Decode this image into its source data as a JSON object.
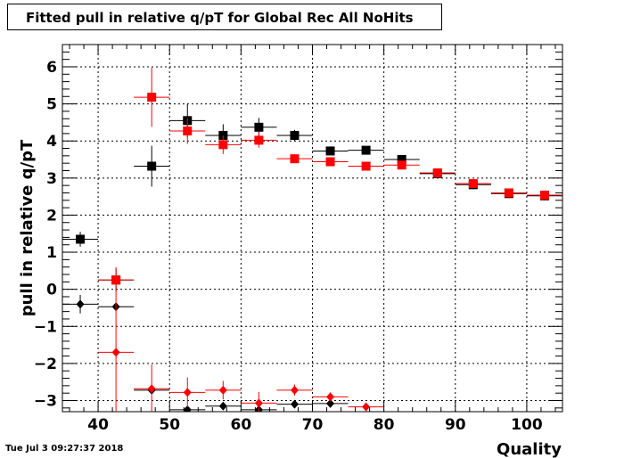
{
  "title": "Fitted pull in relative q/pT for Global Rec All NoHits",
  "timestamp": "Tue Jul  3 09:27:37 2018",
  "colors": {
    "black_series": "#000000",
    "red_series": "#ff0000",
    "grid": "#000000",
    "background": "#ffffff"
  },
  "chart_data": {
    "type": "scatter",
    "title": "Fitted pull in relative q/pT for Global Rec All NoHits",
    "xlabel": "Quality",
    "ylabel": "pull in relative q/pT",
    "xlim": [
      35,
      105
    ],
    "ylim": [
      -3.3,
      6.6
    ],
    "grid": true,
    "x_ticks": [
      40,
      50,
      60,
      70,
      80,
      90,
      100
    ],
    "x_tick_labels": [
      "40",
      "50",
      "60",
      "70",
      "80",
      "90",
      "100"
    ],
    "y_ticks": [
      -3,
      -2,
      -1,
      0,
      1,
      2,
      3,
      4,
      5,
      6
    ],
    "y_tick_labels": [
      "−3",
      "−2",
      "−1",
      "0",
      "1",
      "2",
      "3",
      "4",
      "5",
      "6"
    ],
    "series": [
      {
        "color": "#000000",
        "marker": "square",
        "points": [
          {
            "x": 37.5,
            "y": 1.35,
            "xerr": 2.5,
            "yerr": 0.2
          },
          {
            "x": 42.5,
            "y": 0.25,
            "xerr": 2.5,
            "yerr": 0.3
          },
          {
            "x": 47.5,
            "y": 3.32,
            "xerr": 2.5,
            "yerr": 0.55
          },
          {
            "x": 52.5,
            "y": 4.55,
            "xerr": 2.5,
            "yerr": 0.45
          },
          {
            "x": 57.5,
            "y": 4.15,
            "xerr": 2.5,
            "yerr": 0.3
          },
          {
            "x": 62.5,
            "y": 4.37,
            "xerr": 2.5,
            "yerr": 0.25
          },
          {
            "x": 67.5,
            "y": 4.15,
            "xerr": 2.5,
            "yerr": 0.15
          },
          {
            "x": 72.5,
            "y": 3.73,
            "xerr": 2.5,
            "yerr": 0.1
          },
          {
            "x": 77.5,
            "y": 3.75,
            "xerr": 2.5,
            "yerr": 0.08
          },
          {
            "x": 82.5,
            "y": 3.5,
            "xerr": 2.5,
            "yerr": 0.06
          },
          {
            "x": 87.5,
            "y": 3.12,
            "xerr": 2.5,
            "yerr": 0.05
          },
          {
            "x": 92.5,
            "y": 2.82,
            "xerr": 2.5,
            "yerr": 0.04
          },
          {
            "x": 97.5,
            "y": 2.58,
            "xerr": 2.5,
            "yerr": 0.04
          },
          {
            "x": 102.5,
            "y": 2.52,
            "xerr": 2.5,
            "yerr": 0.03
          }
        ]
      },
      {
        "color": "#ff0000",
        "marker": "square",
        "points": [
          {
            "x": 42.5,
            "y": 0.25,
            "xerr": 2.5,
            "yerr": 0.3
          },
          {
            "x": 47.5,
            "y": 5.18,
            "xerr": 2.5,
            "yerr": 0.8
          },
          {
            "x": 52.5,
            "y": 4.27,
            "xerr": 2.5,
            "yerr": 0.35
          },
          {
            "x": 57.5,
            "y": 3.9,
            "xerr": 2.5,
            "yerr": 0.25
          },
          {
            "x": 62.5,
            "y": 4.02,
            "xerr": 2.5,
            "yerr": 0.2
          },
          {
            "x": 67.5,
            "y": 3.52,
            "xerr": 2.5,
            "yerr": 0.12
          },
          {
            "x": 72.5,
            "y": 3.44,
            "xerr": 2.5,
            "yerr": 0.08
          },
          {
            "x": 77.5,
            "y": 3.32,
            "xerr": 2.5,
            "yerr": 0.06
          },
          {
            "x": 82.5,
            "y": 3.35,
            "xerr": 2.5,
            "yerr": 0.05
          },
          {
            "x": 87.5,
            "y": 3.14,
            "xerr": 2.5,
            "yerr": 0.04
          },
          {
            "x": 92.5,
            "y": 2.85,
            "xerr": 2.5,
            "yerr": 0.04
          },
          {
            "x": 97.5,
            "y": 2.6,
            "xerr": 2.5,
            "yerr": 0.03
          },
          {
            "x": 102.5,
            "y": 2.54,
            "xerr": 2.5,
            "yerr": 0.03
          }
        ]
      },
      {
        "color": "#000000",
        "marker": "diamond",
        "points": [
          {
            "x": 37.5,
            "y": -0.4,
            "xerr": 2.5,
            "yerr": 0.25
          },
          {
            "x": 42.5,
            "y": -0.47,
            "xerr": 2.5,
            "yerr": 0.0
          },
          {
            "x": 47.5,
            "y": -2.72,
            "xerr": 2.5,
            "yerr": 0.0
          },
          {
            "x": 52.5,
            "y": -3.25,
            "xerr": 2.5,
            "yerr": 0.0
          },
          {
            "x": 57.5,
            "y": -3.15,
            "xerr": 2.5,
            "yerr": 0.0
          },
          {
            "x": 62.5,
            "y": -3.25,
            "xerr": 2.5,
            "yerr": 0.0
          },
          {
            "x": 67.5,
            "y": -3.1,
            "xerr": 2.5,
            "yerr": 0.0
          },
          {
            "x": 72.5,
            "y": -3.08,
            "xerr": 2.5,
            "yerr": 0.0
          }
        ]
      },
      {
        "color": "#ff0000",
        "marker": "diamond",
        "points": [
          {
            "x": 42.5,
            "y": -1.7,
            "xerr": 2.5,
            "yerr": 2.3
          },
          {
            "x": 47.5,
            "y": -2.68,
            "xerr": 2.5,
            "yerr": 0.65
          },
          {
            "x": 52.5,
            "y": -2.78,
            "xerr": 2.5,
            "yerr": 0.4
          },
          {
            "x": 57.5,
            "y": -2.72,
            "xerr": 2.5,
            "yerr": 0.25
          },
          {
            "x": 62.5,
            "y": -3.07,
            "xerr": 2.5,
            "yerr": 0.3
          },
          {
            "x": 67.5,
            "y": -2.72,
            "xerr": 2.5,
            "yerr": 0.15
          },
          {
            "x": 72.5,
            "y": -2.9,
            "xerr": 2.5,
            "yerr": 0.12
          },
          {
            "x": 77.5,
            "y": -3.17,
            "xerr": 2.5,
            "yerr": 0.1
          }
        ]
      }
    ]
  }
}
